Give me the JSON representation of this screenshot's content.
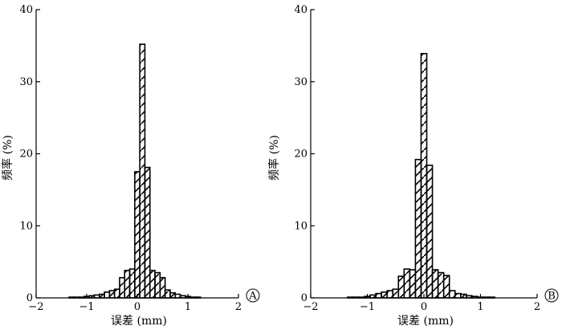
{
  "chart_data": [
    {
      "type": "bar",
      "panel_label": "A",
      "xlabel": "误差 (mm)",
      "ylabel": "频率 (%)",
      "xlim": [
        -2,
        2
      ],
      "ylim": [
        0,
        40
      ],
      "x_ticks": [
        -2,
        -1,
        0,
        1,
        2
      ],
      "y_ticks": [
        0,
        10,
        20,
        30,
        40
      ],
      "bin_width": 0.1,
      "bars": [
        {
          "x": -1.3,
          "value": 0.1
        },
        {
          "x": -1.2,
          "value": 0.1
        },
        {
          "x": -1.1,
          "value": 0.1
        },
        {
          "x": -1.0,
          "value": 0.2
        },
        {
          "x": -0.9,
          "value": 0.3
        },
        {
          "x": -0.8,
          "value": 0.4
        },
        {
          "x": -0.7,
          "value": 0.5
        },
        {
          "x": -0.6,
          "value": 0.8
        },
        {
          "x": -0.5,
          "value": 1.0
        },
        {
          "x": -0.4,
          "value": 1.2
        },
        {
          "x": -0.3,
          "value": 2.8
        },
        {
          "x": -0.2,
          "value": 3.8
        },
        {
          "x": -0.1,
          "value": 4.0
        },
        {
          "x": 0.0,
          "value": 17.5
        },
        {
          "x": 0.1,
          "value": 35.2
        },
        {
          "x": 0.2,
          "value": 18.1
        },
        {
          "x": 0.3,
          "value": 3.8
        },
        {
          "x": 0.4,
          "value": 3.5
        },
        {
          "x": 0.5,
          "value": 2.8
        },
        {
          "x": 0.6,
          "value": 1.1
        },
        {
          "x": 0.7,
          "value": 0.7
        },
        {
          "x": 0.8,
          "value": 0.5
        },
        {
          "x": 0.9,
          "value": 0.3
        },
        {
          "x": 1.0,
          "value": 0.2
        },
        {
          "x": 1.1,
          "value": 0.1
        },
        {
          "x": 1.2,
          "value": 0.1
        }
      ]
    },
    {
      "type": "bar",
      "panel_label": "B",
      "xlabel": "误差 (mm)",
      "ylabel": "频率 (%)",
      "xlim": [
        -2,
        2
      ],
      "ylim": [
        0,
        40
      ],
      "x_ticks": [
        -2,
        -1,
        0,
        1,
        2
      ],
      "y_ticks": [
        0,
        10,
        20,
        30,
        40
      ],
      "bin_width": 0.1,
      "bars": [
        {
          "x": -1.3,
          "value": 0.1
        },
        {
          "x": -1.2,
          "value": 0.1
        },
        {
          "x": -1.1,
          "value": 0.1
        },
        {
          "x": -1.0,
          "value": 0.2
        },
        {
          "x": -0.9,
          "value": 0.4
        },
        {
          "x": -0.8,
          "value": 0.6
        },
        {
          "x": -0.7,
          "value": 0.8
        },
        {
          "x": -0.6,
          "value": 1.0
        },
        {
          "x": -0.5,
          "value": 1.2
        },
        {
          "x": -0.4,
          "value": 3.0
        },
        {
          "x": -0.3,
          "value": 4.0
        },
        {
          "x": -0.2,
          "value": 3.9
        },
        {
          "x": -0.1,
          "value": 19.2
        },
        {
          "x": 0.0,
          "value": 33.9
        },
        {
          "x": 0.1,
          "value": 18.4
        },
        {
          "x": 0.2,
          "value": 3.9
        },
        {
          "x": 0.3,
          "value": 3.5
        },
        {
          "x": 0.4,
          "value": 3.1
        },
        {
          "x": 0.5,
          "value": 1.0
        },
        {
          "x": 0.6,
          "value": 0.6
        },
        {
          "x": 0.7,
          "value": 0.5
        },
        {
          "x": 0.8,
          "value": 0.3
        },
        {
          "x": 0.9,
          "value": 0.2
        },
        {
          "x": 1.0,
          "value": 0.1
        },
        {
          "x": 1.1,
          "value": 0.1
        },
        {
          "x": 1.2,
          "value": 0.1
        }
      ]
    }
  ]
}
